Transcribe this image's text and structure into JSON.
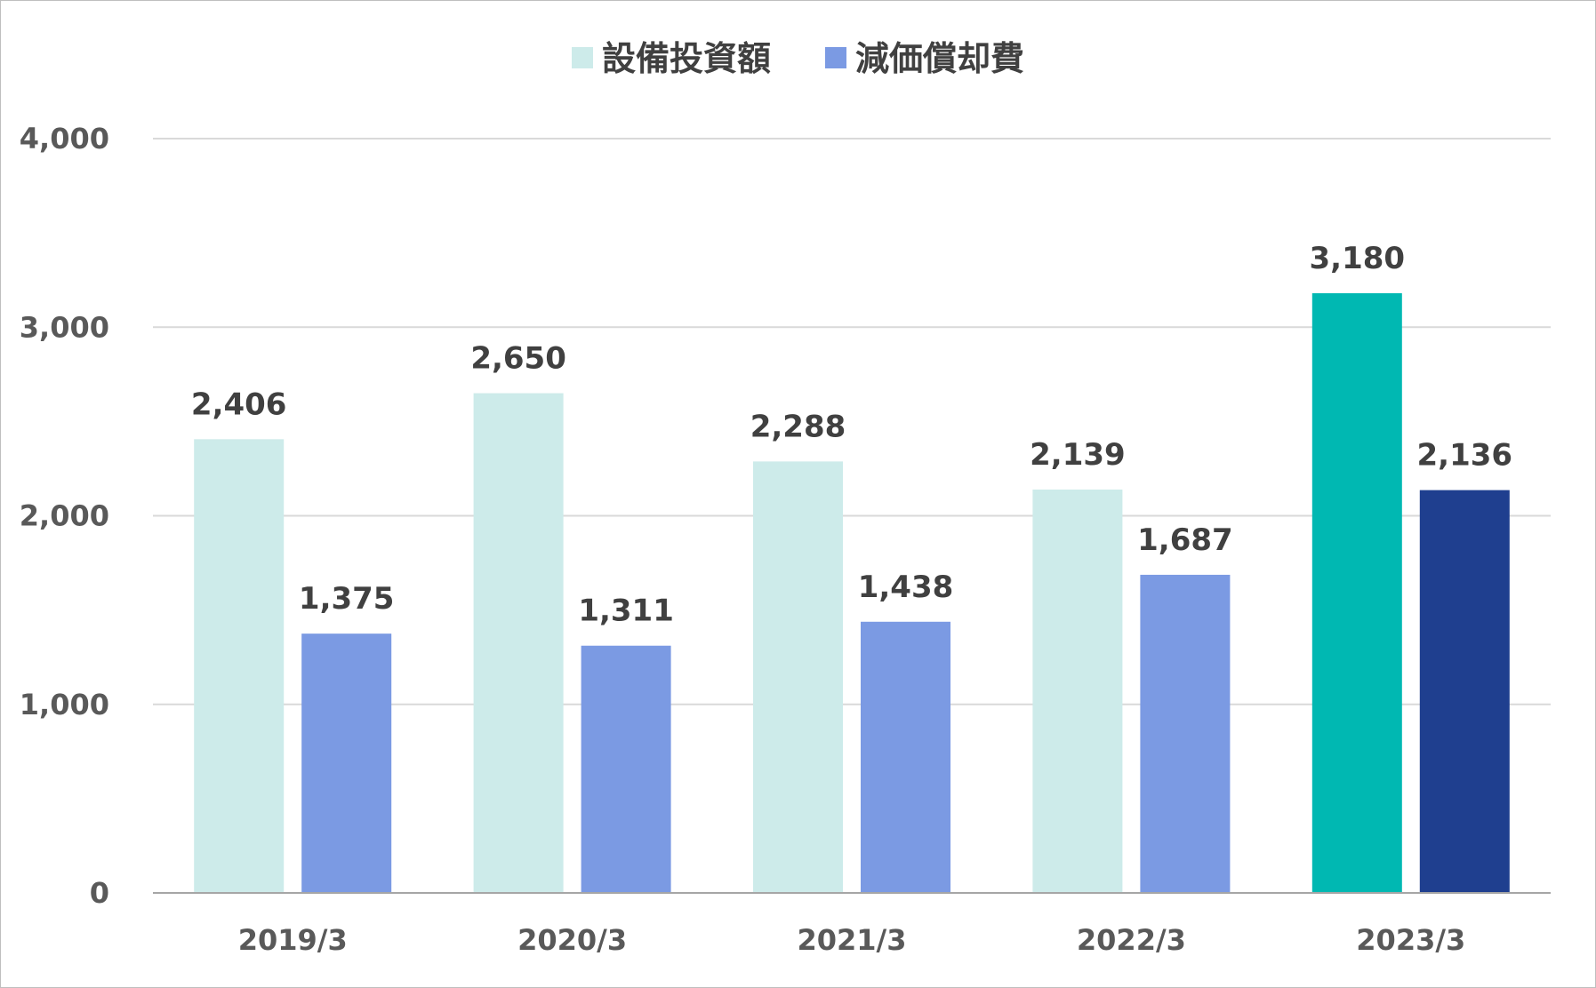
{
  "chart_data": {
    "type": "bar",
    "categories": [
      "2019/3",
      "2020/3",
      "2021/3",
      "2022/3",
      "2023/3"
    ],
    "series": [
      {
        "name": "設備投資額",
        "values": [
          2406,
          2650,
          2288,
          2139,
          3180
        ],
        "labels": [
          "2,406",
          "2,650",
          "2,288",
          "2,139",
          "3,180"
        ],
        "color": "#CDEBEA",
        "highlight_color": "#00B8B2"
      },
      {
        "name": "減価償却費",
        "values": [
          1375,
          1311,
          1438,
          1687,
          2136
        ],
        "labels": [
          "1,375",
          "1,311",
          "1,438",
          "1,687",
          "2,136"
        ],
        "color": "#7B9AE3",
        "highlight_color": "#1F3F8F"
      }
    ],
    "highlight_category": "2023/3",
    "yticks": [
      0,
      1000,
      2000,
      3000,
      4000
    ],
    "ytick_labels": [
      "0",
      "1,000",
      "2,000",
      "3,000",
      "4,000"
    ],
    "ylim": [
      0,
      4000
    ],
    "grid": true,
    "legend_position": "top-center"
  }
}
